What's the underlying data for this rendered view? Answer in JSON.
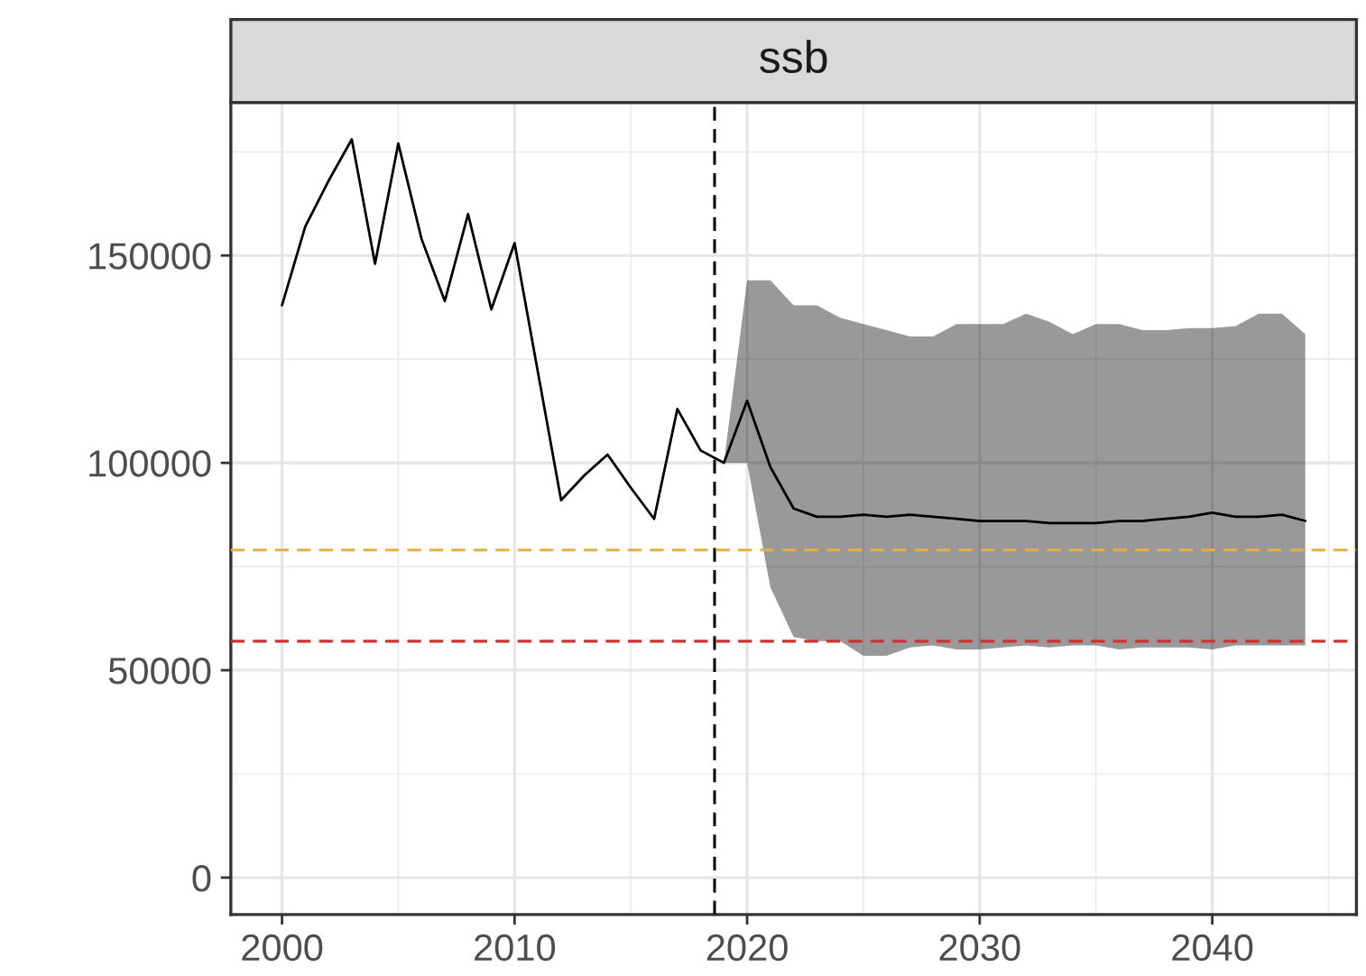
{
  "chart_data": {
    "type": "line",
    "title": "ssb",
    "x": [
      2000,
      2001,
      2002,
      2003,
      2004,
      2005,
      2006,
      2007,
      2008,
      2009,
      2010,
      2011,
      2012,
      2013,
      2014,
      2015,
      2016,
      2017,
      2018,
      2019,
      2020,
      2021,
      2022,
      2023,
      2024,
      2025,
      2026,
      2027,
      2028,
      2029,
      2030,
      2031,
      2032,
      2033,
      2034,
      2035,
      2036,
      2037,
      2038,
      2039,
      2040,
      2041,
      2042,
      2043,
      2044
    ],
    "series": [
      {
        "color": "#000000",
        "values": [
          138000,
          157000,
          168000,
          178000,
          148000,
          177000,
          154000,
          139000,
          160000,
          137000,
          153000,
          122000,
          91000,
          97000,
          102000,
          94000,
          86500,
          113000,
          103000,
          100000,
          115000,
          99000,
          89000,
          87000,
          87000,
          87500,
          87000,
          87500,
          87000,
          86500,
          86000,
          86000,
          86000,
          85500,
          85500,
          85500,
          86000,
          86000,
          86500,
          87000,
          88000,
          87000,
          87000,
          87500,
          86000
        ],
        "lower": [
          null,
          null,
          null,
          null,
          null,
          null,
          null,
          null,
          null,
          null,
          null,
          null,
          null,
          null,
          null,
          null,
          null,
          null,
          null,
          100000,
          100000,
          70000,
          58000,
          57000,
          57000,
          53500,
          53500,
          55500,
          56000,
          55000,
          55000,
          55500,
          56000,
          55500,
          56000,
          56000,
          55000,
          55500,
          55500,
          55500,
          55000,
          56000,
          56000,
          56000,
          56000
        ],
        "upper": [
          null,
          null,
          null,
          null,
          null,
          null,
          null,
          null,
          null,
          null,
          null,
          null,
          null,
          null,
          null,
          null,
          null,
          null,
          null,
          100000,
          144000,
          144000,
          138000,
          138000,
          135000,
          133500,
          132000,
          130500,
          130500,
          133500,
          133500,
          133500,
          136000,
          134000,
          131000,
          133500,
          133500,
          132000,
          132000,
          132500,
          132500,
          133000,
          136000,
          136000,
          131000
        ]
      }
    ],
    "xlim": [
      1997.8,
      2046.2
    ],
    "xticks": [
      2000,
      2010,
      2020,
      2030,
      2040
    ],
    "ylim": [
      -8900,
      186900
    ],
    "yticks": [
      0,
      50000,
      100000,
      150000
    ],
    "ref_lines": [
      {
        "axis": "x",
        "value": 2018.6,
        "color": "#000000",
        "line_style": "dashed"
      },
      {
        "axis": "y",
        "value": 79000,
        "color": "#e6b040",
        "line_style": "dashed"
      },
      {
        "axis": "y",
        "value": 57000,
        "color": "#cc3333",
        "line_style": "dashed"
      }
    ],
    "grid": true
  }
}
